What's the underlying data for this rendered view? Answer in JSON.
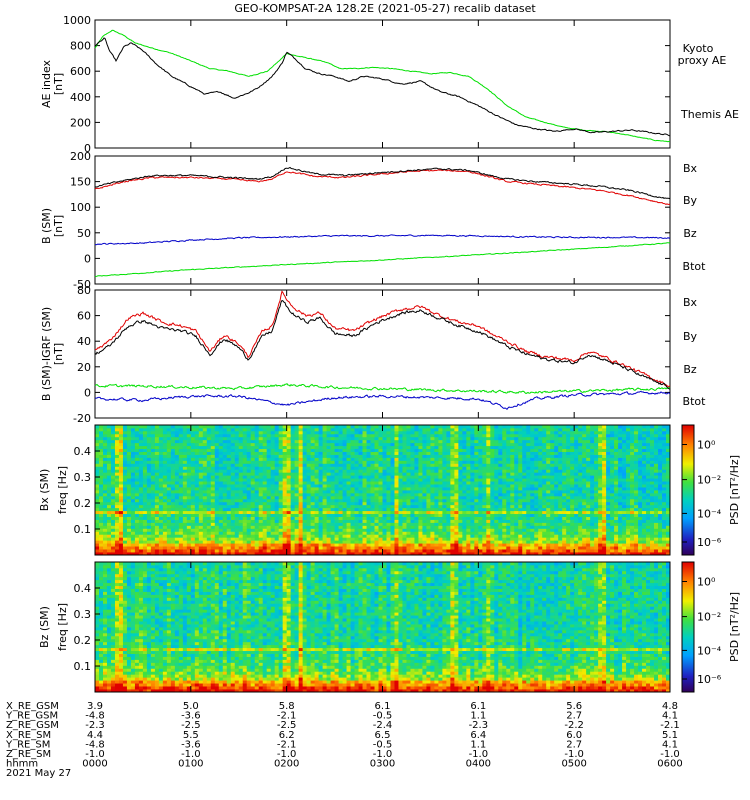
{
  "title": "GEO-KOMPSAT-2A 128.2E (2021-05-27) recalib dataset",
  "colors": {
    "black": "#000000",
    "green": "#00e000",
    "blue": "#0000c8",
    "red": "#e00000"
  },
  "chart_data": [
    {
      "type": "line",
      "ylabel": [
        "AE index",
        "[nT]"
      ],
      "ylim": [
        0,
        1000
      ],
      "yticks": [
        0,
        200,
        400,
        600,
        800,
        1000
      ],
      "x": {
        "start": "0000",
        "end": "0600",
        "unit": "hhmm"
      },
      "series": [
        {
          "name": "Kyoto proxy AE",
          "color": "#00e000",
          "t": [
            0,
            0.08,
            0.18,
            0.3,
            0.42,
            0.6,
            0.8,
            1.0,
            1.2,
            1.4,
            1.6,
            1.8,
            1.95,
            2.0,
            2.1,
            2.3,
            2.45,
            2.55,
            2.7,
            2.9,
            3.1,
            3.3,
            3.5,
            3.7,
            3.9,
            4.1,
            4.3,
            4.5,
            4.7,
            4.9,
            5.1,
            5.3,
            5.5,
            5.7,
            5.85,
            6.0
          ],
          "values": [
            780,
            870,
            920,
            880,
            820,
            780,
            740,
            680,
            620,
            600,
            560,
            600,
            700,
            740,
            720,
            690,
            660,
            620,
            620,
            630,
            620,
            600,
            580,
            590,
            560,
            460,
            330,
            240,
            200,
            160,
            140,
            130,
            110,
            80,
            60,
            50
          ]
        },
        {
          "name": "Themis AE",
          "color": "#000000",
          "t": [
            0,
            0.05,
            0.1,
            0.15,
            0.22,
            0.3,
            0.38,
            0.5,
            0.65,
            0.8,
            1.0,
            1.15,
            1.3,
            1.45,
            1.6,
            1.7,
            1.85,
            1.95,
            2.0,
            2.1,
            2.2,
            2.35,
            2.5,
            2.65,
            2.8,
            3.0,
            3.2,
            3.4,
            3.6,
            3.8,
            4.0,
            4.2,
            4.4,
            4.6,
            4.8,
            5.0,
            5.2,
            5.4,
            5.6,
            5.8,
            6.0
          ],
          "values": [
            800,
            830,
            860,
            760,
            680,
            790,
            820,
            760,
            650,
            560,
            480,
            420,
            440,
            390,
            430,
            470,
            560,
            660,
            750,
            690,
            620,
            580,
            560,
            520,
            560,
            540,
            500,
            520,
            440,
            400,
            330,
            250,
            180,
            150,
            130,
            150,
            120,
            130,
            140,
            120,
            100
          ]
        }
      ],
      "legend": [
        "Kyoto proxy AE",
        "Themis AE"
      ]
    },
    {
      "type": "line",
      "ylabel": [
        "B (SM)",
        "[nT]"
      ],
      "ylim": [
        -50,
        200
      ],
      "yticks": [
        -50,
        0,
        50,
        100,
        150,
        200
      ],
      "series": [
        {
          "name": "Bx",
          "color": "#0000c8",
          "t": [
            0,
            0.5,
            1.0,
            1.5,
            2.0,
            2.5,
            3.0,
            3.5,
            4.0,
            4.5,
            5.0,
            5.5,
            6.0
          ],
          "values": [
            28,
            30,
            36,
            40,
            42,
            44,
            44,
            45,
            44,
            42,
            41,
            41,
            40
          ]
        },
        {
          "name": "By",
          "color": "#00e000",
          "t": [
            0,
            1,
            2,
            3,
            4,
            5,
            6
          ],
          "values": [
            -35,
            -22,
            -12,
            -3,
            7,
            18,
            30
          ]
        },
        {
          "name": "Bz",
          "color": "#e00000",
          "t": [
            0,
            0.3,
            0.6,
            1.0,
            1.4,
            1.7,
            1.85,
            2.0,
            2.3,
            2.6,
            3.0,
            3.3,
            3.6,
            3.9,
            4.1,
            4.3,
            4.6,
            5.0,
            5.3,
            5.6,
            6.0
          ],
          "values": [
            135,
            150,
            158,
            158,
            155,
            150,
            155,
            170,
            160,
            158,
            165,
            170,
            172,
            170,
            160,
            150,
            145,
            138,
            132,
            122,
            105
          ]
        },
        {
          "name": "Btot",
          "color": "#000000",
          "t": [
            0,
            0.3,
            0.6,
            1.0,
            1.4,
            1.7,
            1.85,
            2.0,
            2.3,
            2.6,
            3.0,
            3.3,
            3.6,
            3.9,
            4.1,
            4.3,
            4.6,
            5.0,
            5.3,
            5.6,
            6.0
          ],
          "values": [
            140,
            152,
            162,
            162,
            158,
            155,
            160,
            178,
            165,
            162,
            168,
            172,
            175,
            172,
            163,
            155,
            150,
            145,
            140,
            132,
            115
          ]
        }
      ],
      "legend": [
        "Bx",
        "By",
        "Bz",
        "Btot"
      ]
    },
    {
      "type": "line",
      "ylabel": [
        "B (SM)-IGRF (SM)",
        "[nT]"
      ],
      "ylim": [
        -20,
        80
      ],
      "yticks": [
        -20,
        0,
        20,
        40,
        60,
        80
      ],
      "series": [
        {
          "name": "Bx",
          "color": "#0000c8",
          "t": [
            0,
            0.5,
            1.0,
            1.5,
            2.0,
            2.5,
            3.0,
            3.5,
            4.0,
            4.3,
            4.6,
            5.0,
            5.5,
            6.0
          ],
          "values": [
            -5,
            -6,
            -3,
            -3,
            -10,
            -4,
            -3,
            -4,
            -5,
            -12,
            -5,
            -2,
            -1,
            0
          ]
        },
        {
          "name": "By",
          "color": "#00e000",
          "t": [
            0,
            0.5,
            1.0,
            1.5,
            2.0,
            2.5,
            3.0,
            3.5,
            4.0,
            4.5,
            5.0,
            5.5,
            6.0
          ],
          "values": [
            5,
            5,
            4,
            3,
            6,
            4,
            3,
            2,
            1,
            0,
            1,
            2,
            3
          ]
        },
        {
          "name": "Bz",
          "color": "#e00000",
          "t": [
            0,
            0.15,
            0.35,
            0.5,
            0.7,
            0.9,
            1.05,
            1.2,
            1.35,
            1.5,
            1.6,
            1.75,
            1.85,
            1.95,
            2.05,
            2.2,
            2.35,
            2.5,
            2.7,
            2.95,
            3.2,
            3.4,
            3.6,
            3.8,
            4.0,
            4.15,
            4.3,
            4.5,
            4.7,
            4.9,
            5.0,
            5.15,
            5.3,
            5.5,
            5.7,
            5.85,
            6.0
          ],
          "values": [
            33,
            40,
            58,
            62,
            55,
            52,
            48,
            32,
            45,
            38,
            28,
            48,
            52,
            78,
            68,
            60,
            62,
            50,
            48,
            58,
            65,
            67,
            60,
            55,
            52,
            45,
            40,
            32,
            28,
            26,
            25,
            32,
            28,
            22,
            15,
            10,
            5
          ]
        },
        {
          "name": "Btot",
          "color": "#000000",
          "t": [
            0,
            0.15,
            0.35,
            0.5,
            0.7,
            0.9,
            1.05,
            1.2,
            1.35,
            1.5,
            1.6,
            1.75,
            1.85,
            1.95,
            2.05,
            2.2,
            2.35,
            2.5,
            2.7,
            2.95,
            3.2,
            3.4,
            3.6,
            3.8,
            4.0,
            4.15,
            4.3,
            4.5,
            4.7,
            4.9,
            5.0,
            5.15,
            5.3,
            5.5,
            5.7,
            5.85,
            6.0
          ],
          "values": [
            30,
            36,
            52,
            56,
            50,
            48,
            44,
            30,
            42,
            35,
            26,
            44,
            48,
            72,
            62,
            55,
            58,
            46,
            44,
            55,
            62,
            64,
            58,
            52,
            48,
            42,
            36,
            30,
            26,
            24,
            23,
            30,
            26,
            20,
            13,
            8,
            4
          ]
        }
      ],
      "legend": [
        "Bx",
        "By",
        "Bz",
        "Btot"
      ]
    },
    {
      "type": "heatmap",
      "ylabel": [
        "Bx (SM)",
        "freq [Hz]"
      ],
      "ylim": [
        0,
        0.5
      ],
      "yticks": [
        0.1,
        0.2,
        0.3,
        0.4
      ],
      "colorbar": {
        "label": "PSD [nT²/Hz]",
        "ticks": [
          "10⁰",
          "10⁻²",
          "10⁻⁴",
          "10⁻⁶"
        ]
      }
    },
    {
      "type": "heatmap",
      "ylabel": [
        "Bz (SM)",
        "freq [Hz]"
      ],
      "ylim": [
        0,
        0.5
      ],
      "yticks": [
        0.1,
        0.2,
        0.3,
        0.4
      ],
      "colorbar": {
        "label": "PSD [nT²/Hz]",
        "ticks": [
          "10⁰",
          "10⁻²",
          "10⁻⁴",
          "10⁻⁶"
        ]
      }
    }
  ],
  "ephemeris": {
    "labels": [
      "X_RE_GSM",
      "Y_RE_GSM",
      "Z_RE_GSM",
      "X_RE_SM",
      "Y_RE_SM",
      "Z_RE_SM",
      "hhmm"
    ],
    "columns": [
      [
        "3.9",
        "-4.8",
        "-2.3",
        "4.4",
        "-4.8",
        "-1.0",
        "0000"
      ],
      [
        "5.0",
        "-3.6",
        "-2.5",
        "5.5",
        "-3.6",
        "-1.0",
        "0100"
      ],
      [
        "5.8",
        "-2.1",
        "-2.5",
        "6.2",
        "-2.1",
        "-1.0",
        "0200"
      ],
      [
        "6.1",
        "-0.5",
        "-2.4",
        "6.5",
        "-0.5",
        "-1.0",
        "0300"
      ],
      [
        "6.1",
        "1.1",
        "-2.3",
        "6.4",
        "1.1",
        "-1.0",
        "0400"
      ],
      [
        "5.6",
        "2.7",
        "-2.2",
        "6.0",
        "2.7",
        "-1.0",
        "0500"
      ],
      [
        "4.8",
        "4.1",
        "-2.1",
        "5.1",
        "4.1",
        "-1.0",
        "0600"
      ]
    ],
    "date": "2021 May 27"
  }
}
